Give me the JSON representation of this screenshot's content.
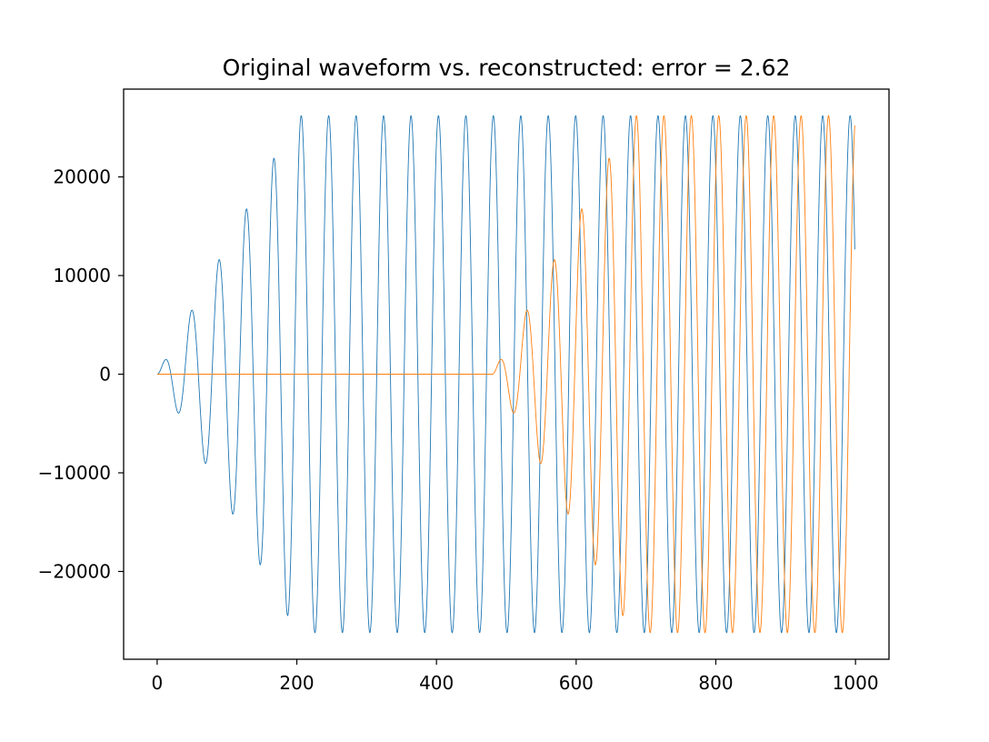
{
  "chart_data": {
    "type": "line",
    "title": "Original waveform vs. reconstructed: error = 2.62",
    "xlabel": "",
    "ylabel": "",
    "xlim": [
      -48,
      1048
    ],
    "ylim": [
      -28900,
      28900
    ],
    "x_ticks": [
      0,
      200,
      400,
      600,
      800,
      1000
    ],
    "x_tick_labels": [
      "0",
      "200",
      "400",
      "600",
      "800",
      "1000"
    ],
    "y_ticks": [
      -20000,
      -10000,
      0,
      10000,
      20000
    ],
    "y_tick_labels": [
      "−20000",
      "−10000",
      "0",
      "10000",
      "20000"
    ],
    "grid": false,
    "legend": "none",
    "series": [
      {
        "color": "#1f77b4",
        "amplitude": 26214,
        "period": 39.3,
        "start": 0,
        "ramp_length": 200,
        "x_range": [
          0,
          999
        ]
      },
      {
        "color": "#ff7f0e",
        "amplitude": 26214,
        "period": 39.3,
        "start": 480,
        "ramp_length": 200,
        "x_range": [
          0,
          999
        ]
      }
    ]
  }
}
